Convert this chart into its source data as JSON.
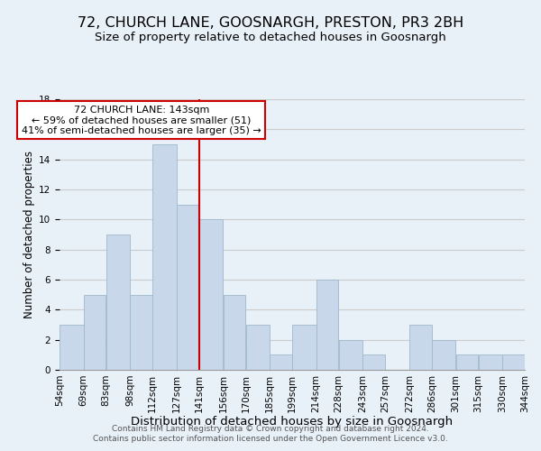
{
  "title": "72, CHURCH LANE, GOOSNARGH, PRESTON, PR3 2BH",
  "subtitle": "Size of property relative to detached houses in Goosnargh",
  "xlabel": "Distribution of detached houses by size in Goosnargh",
  "ylabel": "Number of detached properties",
  "bin_edges": [
    54,
    69,
    83,
    98,
    112,
    127,
    141,
    156,
    170,
    185,
    199,
    214,
    228,
    243,
    257,
    272,
    286,
    301,
    315,
    330,
    344
  ],
  "bin_labels": [
    "54sqm",
    "69sqm",
    "83sqm",
    "98sqm",
    "112sqm",
    "127sqm",
    "141sqm",
    "156sqm",
    "170sqm",
    "185sqm",
    "199sqm",
    "214sqm",
    "228sqm",
    "243sqm",
    "257sqm",
    "272sqm",
    "286sqm",
    "301sqm",
    "315sqm",
    "330sqm",
    "344sqm"
  ],
  "counts": [
    3,
    5,
    9,
    5,
    15,
    11,
    10,
    5,
    3,
    1,
    3,
    6,
    2,
    1,
    0,
    3,
    2,
    1,
    1,
    1
  ],
  "bar_color": "#c8d8ea",
  "bar_edge_color": "#a0b8cc",
  "reference_line_x": 141,
  "reference_line_color": "#cc0000",
  "annotation_title": "72 CHURCH LANE: 143sqm",
  "annotation_line1": "← 59% of detached houses are smaller (51)",
  "annotation_line2": "41% of semi-detached houses are larger (35) →",
  "annotation_box_color": "#ffffff",
  "annotation_box_edge_color": "#cc0000",
  "ylim": [
    0,
    18
  ],
  "yticks": [
    0,
    2,
    4,
    6,
    8,
    10,
    12,
    14,
    16,
    18
  ],
  "grid_color": "#cccccc",
  "background_color": "#e8f0f8",
  "footer_line1": "Contains HM Land Registry data © Crown copyright and database right 2024.",
  "footer_line2": "Contains public sector information licensed under the Open Government Licence v3.0.",
  "title_fontsize": 11.5,
  "subtitle_fontsize": 9.5,
  "xlabel_fontsize": 9.5,
  "ylabel_fontsize": 8.5,
  "tick_fontsize": 7.5,
  "annotation_fontsize": 8,
  "footer_fontsize": 6.5
}
